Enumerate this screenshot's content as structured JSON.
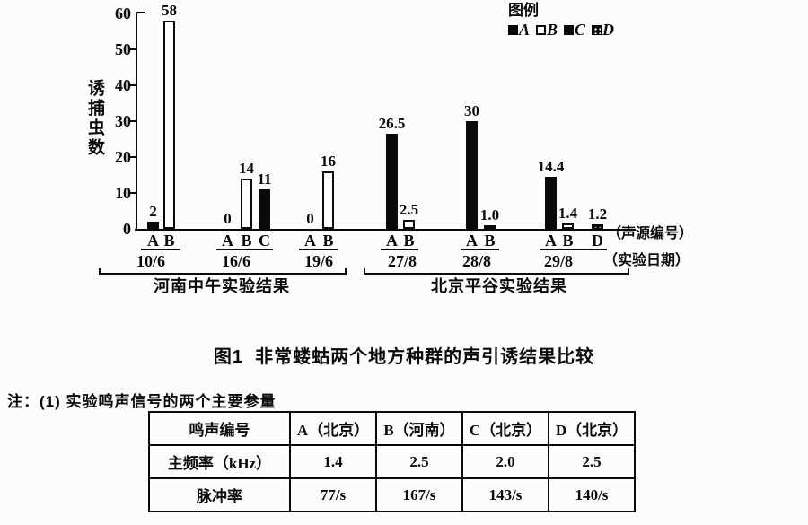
{
  "figure": {
    "title": "图1  非常蝼蛄两个地方种群的声引诱结果比较",
    "note": "注：(1) 实验鸣声信号的两个主要参量"
  },
  "chart_data": {
    "type": "bar",
    "title": "图1 非常蝼蛄两个地方种群的声引诱结果比较",
    "ylabel": "诱捕虫数",
    "ylim": [
      0,
      60
    ],
    "y_ticks": [
      60,
      50,
      40,
      30,
      20,
      10,
      0
    ],
    "grid": false,
    "legend_position": "top-right",
    "legend_title": "图例",
    "legend": [
      {
        "source": "A",
        "style": "black"
      },
      {
        "source": "B",
        "style": "white"
      },
      {
        "source": "C",
        "style": "black"
      },
      {
        "source": "D",
        "style": "speckled"
      }
    ],
    "right_axis_labels": {
      "sources": "（声源编号）",
      "dates": "（实验日期）"
    },
    "groups": [
      {
        "date": "10/6",
        "bars": [
          {
            "source": "A",
            "value": 2,
            "label": "2",
            "style": "black"
          },
          {
            "source": "B",
            "value": 58,
            "label": "58",
            "style": "white"
          }
        ]
      },
      {
        "date": "16/6",
        "bars": [
          {
            "source": "A",
            "value": 0,
            "label": "0",
            "style": "black"
          },
          {
            "source": "B",
            "value": 14,
            "label": "14",
            "style": "white"
          },
          {
            "source": "C",
            "value": 11,
            "label": "11",
            "style": "black"
          }
        ]
      },
      {
        "date": "19/6",
        "bars": [
          {
            "source": "A",
            "value": 0,
            "label": "0",
            "style": "black"
          },
          {
            "source": "B",
            "value": 16,
            "label": "16",
            "style": "white"
          }
        ]
      },
      {
        "date": "27/8",
        "bars": [
          {
            "source": "A",
            "value": 26.5,
            "label": "26.5",
            "style": "black"
          },
          {
            "source": "B",
            "value": 2.5,
            "label": "2.5",
            "style": "white"
          }
        ]
      },
      {
        "date": "28/8",
        "bars": [
          {
            "source": "A",
            "value": 30,
            "label": "30",
            "style": "black"
          },
          {
            "source": "B",
            "value": 1.0,
            "label": "1.0",
            "style": "white"
          }
        ]
      },
      {
        "date": "29/8",
        "bars": [
          {
            "source": "A",
            "value": 14.4,
            "label": "14.4",
            "style": "black"
          },
          {
            "source": "B",
            "value": 1.4,
            "label": "1.4",
            "style": "white"
          },
          {
            "source": "D",
            "value": 1.2,
            "label": "1.2",
            "style": "speckled"
          }
        ]
      }
    ],
    "region_groups": [
      {
        "label": "河南中午实验结果",
        "dates": [
          "10/6",
          "16/6",
          "19/6"
        ]
      },
      {
        "label": "北京平谷实验结果",
        "dates": [
          "27/8",
          "28/8",
          "29/8"
        ]
      }
    ]
  },
  "table": {
    "headers": [
      "鸣声编号",
      "A（北京）",
      "B（河南）",
      "C（北京）",
      "D（北京）"
    ],
    "rows": [
      [
        "主频率（kHz）",
        "1.4",
        "2.5",
        "2.0",
        "2.5"
      ],
      [
        "脉冲率",
        "77/s",
        "167/s",
        "143/s",
        "140/s"
      ]
    ]
  }
}
